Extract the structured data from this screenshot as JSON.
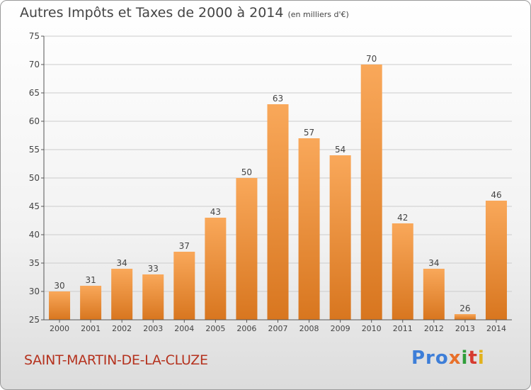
{
  "title": "Autres Impôts et Taxes de 2000 à 2014",
  "subtitle": "(en milliers d'€)",
  "commune": "SAINT-MARTIN-DE-LA-CLUZE",
  "logo": {
    "text": "Proxiti",
    "parts": [
      "Pro",
      "x",
      "i",
      "t",
      "i"
    ]
  },
  "colors": {
    "bar_top": "#f9a85a",
    "bar_bottom": "#d8761f",
    "grid": "#cccccc",
    "axis": "#555555",
    "commune": "#b5321e"
  },
  "chart_data": {
    "type": "bar",
    "categories": [
      "2000",
      "2001",
      "2002",
      "2003",
      "2004",
      "2005",
      "2006",
      "2007",
      "2008",
      "2009",
      "2010",
      "2011",
      "2012",
      "2013",
      "2014"
    ],
    "values": [
      30,
      31,
      34,
      33,
      37,
      43,
      50,
      63,
      57,
      54,
      70,
      42,
      34,
      26,
      46
    ],
    "data_labels": [
      "30",
      "31",
      "34",
      "33",
      "37",
      "43",
      "50",
      "63",
      "57",
      "54",
      "70",
      "42",
      "34",
      "26",
      "46"
    ],
    "ylim": [
      25,
      75
    ],
    "yticks": [
      25,
      30,
      35,
      40,
      45,
      50,
      55,
      60,
      65,
      70,
      75
    ],
    "ytick_labels": [
      "25",
      "30",
      "35",
      "40",
      "45",
      "50",
      "55",
      "60",
      "65",
      "70",
      "75"
    ],
    "grid": true,
    "xlabel": "",
    "ylabel": ""
  }
}
